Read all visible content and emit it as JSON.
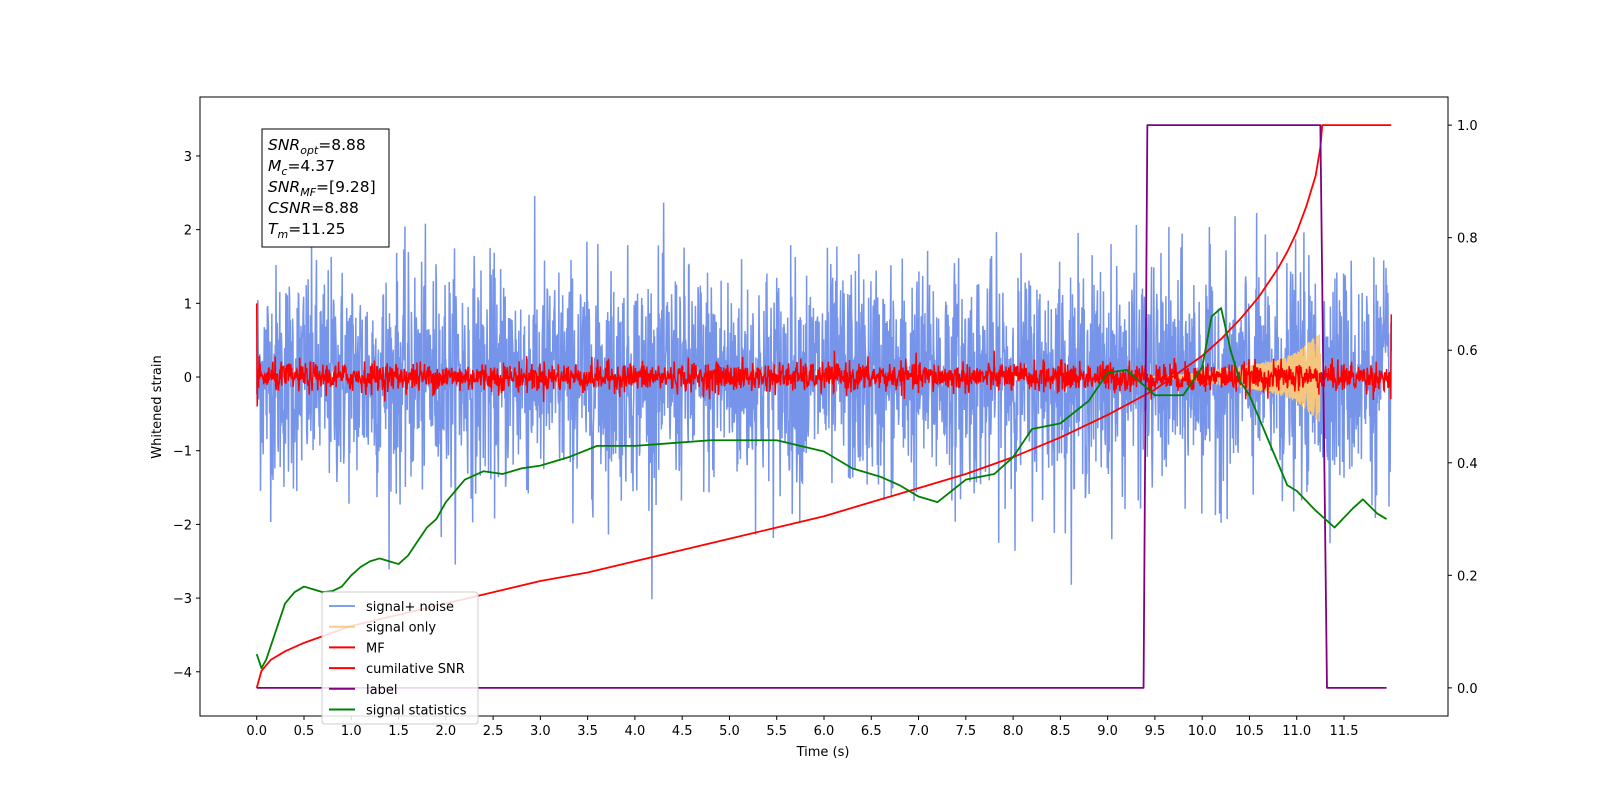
{
  "chart_data": {
    "type": "line",
    "xlabel": "Time (s)",
    "ylabel": "Whitened strain",
    "xlim": [
      -0.6,
      12.6
    ],
    "ylim": [
      -4.6,
      3.8
    ],
    "y2lim": [
      -0.05,
      1.05
    ],
    "x_ticks": [
      0.0,
      0.5,
      1.0,
      1.5,
      2.0,
      2.5,
      3.0,
      3.5,
      4.0,
      4.5,
      5.0,
      5.5,
      6.0,
      6.5,
      7.0,
      7.5,
      8.0,
      8.5,
      9.0,
      9.5,
      10.0,
      10.5,
      11.0,
      11.5
    ],
    "x_tick_labels": [
      "0.0",
      "0.5",
      "1.0",
      "1.5",
      "2.0",
      "2.5",
      "3.0",
      "3.5",
      "4.0",
      "4.5",
      "5.0",
      "5.5",
      "6.0",
      "6.5",
      "7.0",
      "7.5",
      "8.0",
      "8.5",
      "9.0",
      "9.5",
      "10.0",
      "10.5",
      "11.0",
      "11.5"
    ],
    "y_ticks": [
      -4,
      -3,
      -2,
      -1,
      0,
      1,
      2,
      3
    ],
    "y_tick_labels": [
      "−4",
      "−3",
      "−2",
      "−1",
      "0",
      "1",
      "2",
      "3"
    ],
    "y2_ticks": [
      0.0,
      0.2,
      0.4,
      0.6,
      0.8,
      1.0
    ],
    "y2_tick_labels": [
      "0.0",
      "0.2",
      "0.4",
      "0.6",
      "0.8",
      "1.0"
    ],
    "legend_position": "lower-left",
    "series": [
      {
        "name": "signal+ noise",
        "axis": "left",
        "color": "#6f8ee8",
        "kind": "noise",
        "x_range": [
          0.0,
          12.0
        ],
        "std": 0.75,
        "samples": 3000
      },
      {
        "name": "signal only",
        "axis": "left",
        "color": "#f5c77e",
        "kind": "chirp",
        "x_range": [
          9.3,
          11.25
        ],
        "envelope_x": [
          9.3,
          9.6,
          9.9,
          10.2,
          10.5,
          10.8,
          11.0,
          11.15,
          11.25
        ],
        "envelope_y": [
          0.0,
          0.02,
          0.05,
          0.1,
          0.16,
          0.24,
          0.34,
          0.5,
          0.62
        ]
      },
      {
        "name": "MF",
        "axis": "left",
        "color": "#ff0000",
        "kind": "noise",
        "x_range": [
          0.0,
          12.0
        ],
        "std": 0.1,
        "samples": 2400
      },
      {
        "name": "cumilative SNR",
        "axis": "right",
        "color": "#ff0000",
        "x": [
          0.0,
          0.05,
          0.15,
          0.3,
          0.5,
          1.0,
          1.5,
          2.0,
          2.5,
          3.0,
          3.5,
          4.0,
          4.5,
          5.0,
          5.5,
          6.0,
          6.5,
          7.0,
          7.5,
          8.0,
          8.5,
          9.0,
          9.5,
          10.0,
          10.2,
          10.4,
          10.6,
          10.8,
          10.9,
          11.0,
          11.1,
          11.2,
          11.25,
          11.27,
          12.0
        ],
        "y": [
          0.0,
          0.03,
          0.05,
          0.065,
          0.08,
          0.11,
          0.13,
          0.15,
          0.17,
          0.19,
          0.205,
          0.225,
          0.245,
          0.265,
          0.285,
          0.305,
          0.33,
          0.355,
          0.38,
          0.41,
          0.445,
          0.485,
          0.53,
          0.59,
          0.62,
          0.655,
          0.695,
          0.745,
          0.775,
          0.81,
          0.855,
          0.91,
          0.96,
          1.0,
          1.0
        ]
      },
      {
        "name": "label",
        "axis": "right",
        "color": "#800080",
        "x": [
          0.0,
          9.38,
          9.42,
          11.25,
          11.32,
          11.95
        ],
        "y": [
          0.0,
          0.0,
          1.0,
          1.0,
          0.0,
          0.0
        ]
      },
      {
        "name": "signal statistics",
        "axis": "right",
        "color": "#008000",
        "x": [
          0.0,
          0.05,
          0.1,
          0.2,
          0.3,
          0.4,
          0.5,
          0.6,
          0.7,
          0.8,
          0.9,
          1.0,
          1.1,
          1.2,
          1.3,
          1.4,
          1.5,
          1.6,
          1.7,
          1.8,
          1.9,
          2.0,
          2.2,
          2.4,
          2.6,
          2.8,
          3.0,
          3.3,
          3.6,
          4.0,
          4.4,
          4.8,
          5.0,
          5.5,
          6.0,
          6.3,
          6.6,
          6.8,
          7.0,
          7.2,
          7.5,
          7.8,
          8.0,
          8.2,
          8.5,
          8.8,
          9.0,
          9.2,
          9.5,
          9.8,
          10.0,
          10.1,
          10.2,
          10.3,
          10.4,
          10.5,
          10.7,
          10.9,
          11.0,
          11.2,
          11.4,
          11.6,
          11.7,
          11.85,
          11.95
        ],
        "y": [
          0.06,
          0.035,
          0.05,
          0.1,
          0.15,
          0.17,
          0.18,
          0.175,
          0.17,
          0.172,
          0.18,
          0.2,
          0.215,
          0.225,
          0.23,
          0.225,
          0.22,
          0.235,
          0.26,
          0.285,
          0.3,
          0.33,
          0.37,
          0.385,
          0.38,
          0.39,
          0.395,
          0.41,
          0.43,
          0.43,
          0.435,
          0.44,
          0.44,
          0.44,
          0.42,
          0.39,
          0.375,
          0.36,
          0.34,
          0.33,
          0.37,
          0.38,
          0.41,
          0.46,
          0.47,
          0.51,
          0.56,
          0.565,
          0.52,
          0.52,
          0.57,
          0.66,
          0.675,
          0.6,
          0.545,
          0.52,
          0.44,
          0.36,
          0.35,
          0.315,
          0.285,
          0.32,
          0.335,
          0.31,
          0.3
        ]
      }
    ],
    "annotation_box": {
      "lines": [
        {
          "base": "SNR",
          "sub": "opt",
          "value": "=8.88"
        },
        {
          "base": "M",
          "sub": "c",
          "value": "=4.37"
        },
        {
          "base": "SNR",
          "sub": "MF",
          "value": "=[9.28]"
        },
        {
          "base": "CSNR",
          "sub": "",
          "value": "=8.88"
        },
        {
          "base": "T",
          "sub": "m",
          "value": "=11.25"
        }
      ]
    }
  }
}
